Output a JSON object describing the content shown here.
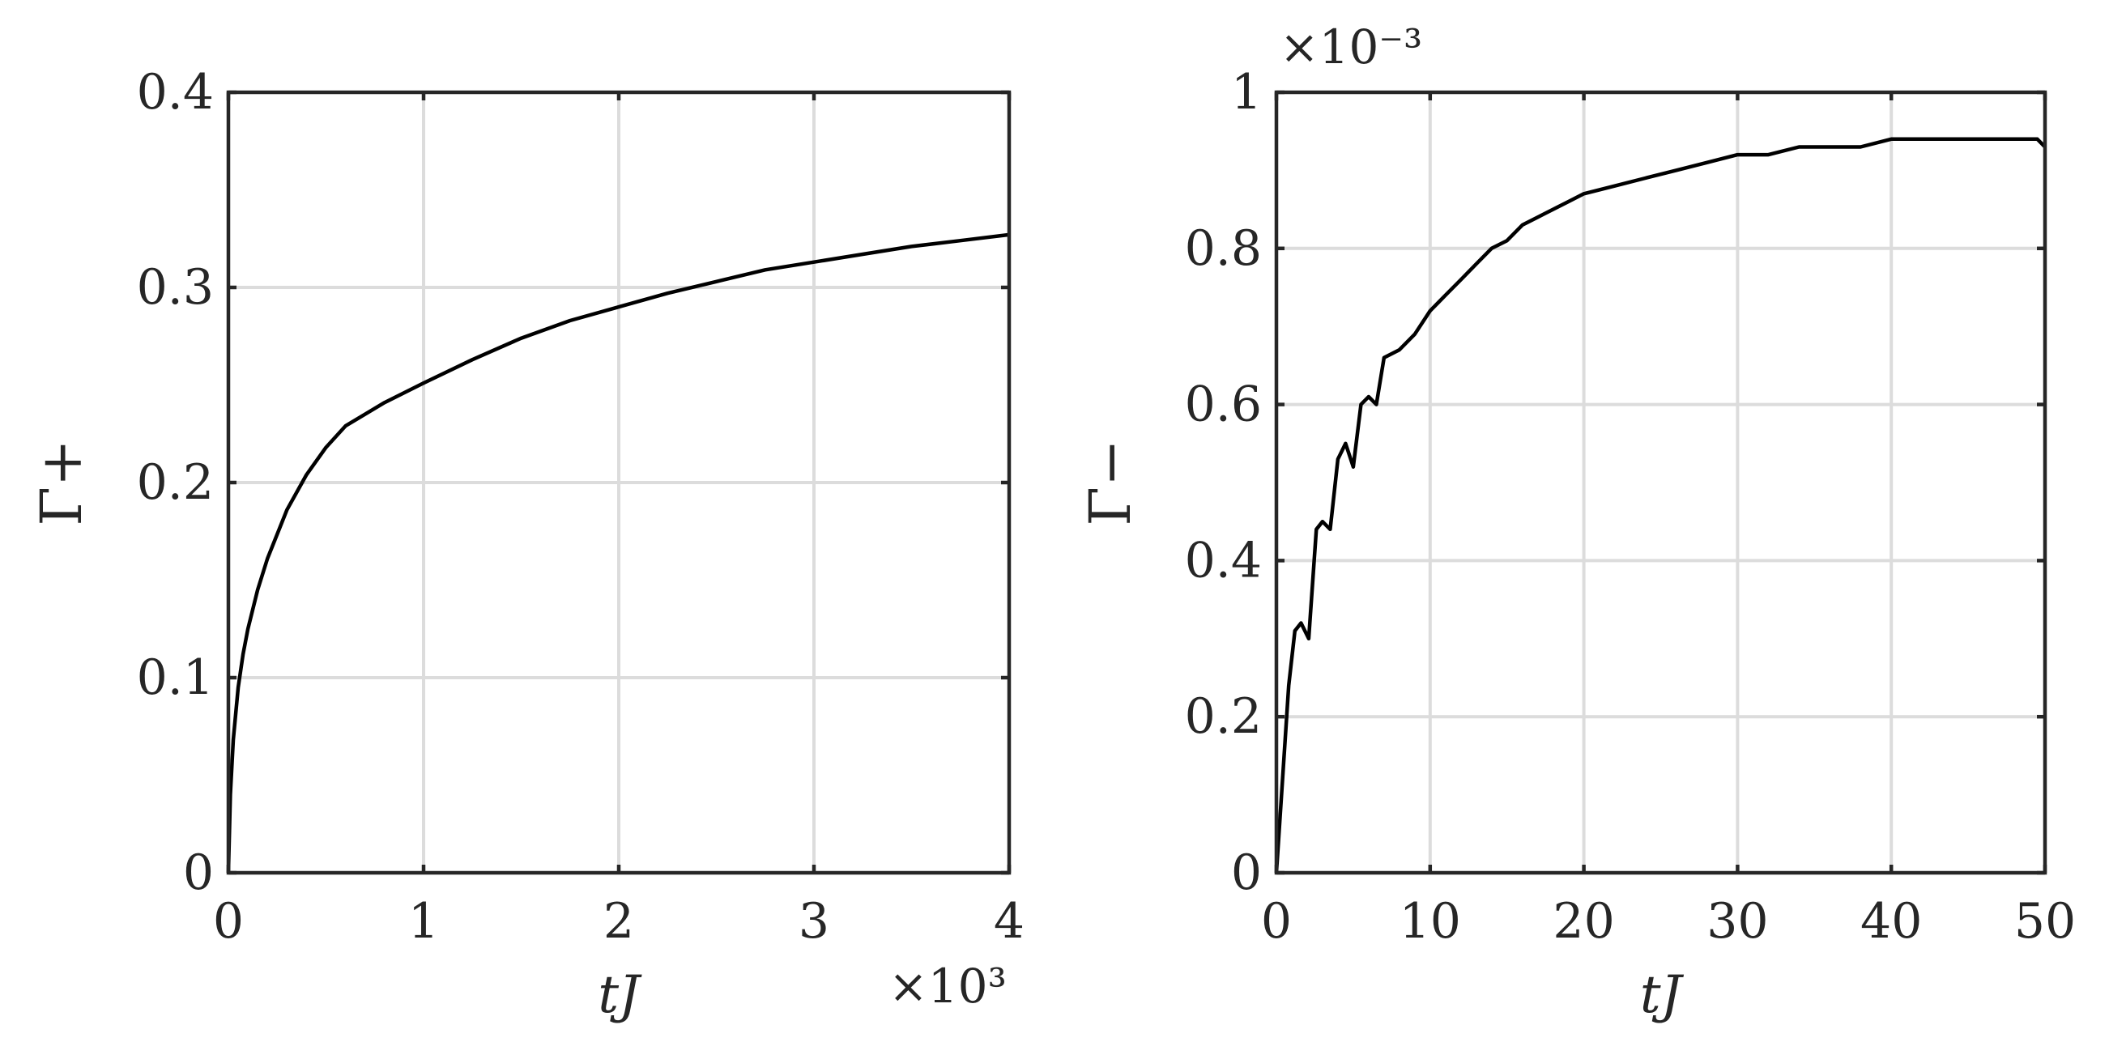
{
  "chart_data": [
    {
      "type": "line",
      "xlabel": "tJ",
      "ylabel": "Γ+",
      "x_multiplier": "×10³",
      "y_multiplier": "",
      "xlim": [
        0,
        4000
      ],
      "ylim": [
        0,
        0.4
      ],
      "x_ticks": [
        0,
        1000,
        2000,
        3000,
        4000
      ],
      "x_tick_labels": [
        "0",
        "1",
        "2",
        "3",
        "4"
      ],
      "y_ticks": [
        0,
        0.1,
        0.2,
        0.3,
        0.4
      ],
      "y_tick_labels": [
        "0",
        "0.1",
        "0.2",
        "0.3",
        "0.4"
      ],
      "grid": true,
      "series": [
        {
          "x": [
            0,
            10,
            25,
            50,
            75,
            100,
            150,
            200,
            300,
            400,
            500,
            600,
            800,
            1000,
            1250,
            1500,
            1750,
            2000,
            2250,
            2500,
            2750,
            3000,
            3250,
            3500,
            3750,
            4000
          ],
          "y": [
            0,
            0.04,
            0.068,
            0.095,
            0.112,
            0.125,
            0.145,
            0.161,
            0.186,
            0.204,
            0.218,
            0.229,
            0.241,
            0.251,
            0.263,
            0.274,
            0.283,
            0.29,
            0.297,
            0.303,
            0.309,
            0.313,
            0.317,
            0.321,
            0.324,
            0.327
          ],
          "color": "#000000"
        }
      ]
    },
    {
      "type": "line",
      "xlabel": "tJ",
      "ylabel": "Γ−",
      "x_multiplier": "",
      "y_multiplier": "×10⁻³",
      "xlim": [
        0,
        50
      ],
      "ylim": [
        0,
        0.001
      ],
      "x_ticks": [
        0,
        10,
        20,
        30,
        40,
        50
      ],
      "x_tick_labels": [
        "0",
        "10",
        "20",
        "30",
        "40",
        "50"
      ],
      "y_ticks": [
        0,
        0.0002,
        0.0004,
        0.0006,
        0.0008,
        0.001
      ],
      "y_tick_labels": [
        "0",
        "0.2",
        "0.4",
        "0.6",
        "0.8",
        "1"
      ],
      "grid": true,
      "series": [
        {
          "x": [
            0,
            0.4,
            0.8,
            1.2,
            1.6,
            2.1,
            2.6,
            3.0,
            3.5,
            4.0,
            4.5,
            5.0,
            5.5,
            6.0,
            6.5,
            7.0,
            8.0,
            9.0,
            10.0,
            11.0,
            12.0,
            13.0,
            14.0,
            15.0,
            16.0,
            17.0,
            18.0,
            19.0,
            20.0,
            22.0,
            24.0,
            26.0,
            28.0,
            30.0,
            32.0,
            34.0,
            36.0,
            38.0,
            40.0,
            42.0,
            44.0,
            46.0,
            48.0,
            49.5,
            50.0
          ],
          "y": [
            0,
            0.00012,
            0.00024,
            0.00031,
            0.00032,
            0.0003,
            0.00044,
            0.00045,
            0.00044,
            0.00053,
            0.00055,
            0.00052,
            0.0006,
            0.00061,
            0.0006,
            0.00066,
            0.00067,
            0.00069,
            0.00072,
            0.00074,
            0.00076,
            0.00078,
            0.0008,
            0.00081,
            0.00083,
            0.00084,
            0.00085,
            0.00086,
            0.00087,
            0.00088,
            0.00089,
            0.0009,
            0.00091,
            0.00092,
            0.00092,
            0.00093,
            0.00093,
            0.00093,
            0.00094,
            0.00094,
            0.00094,
            0.00094,
            0.00094,
            0.00094,
            0.00093
          ],
          "color": "#000000"
        }
      ]
    }
  ]
}
